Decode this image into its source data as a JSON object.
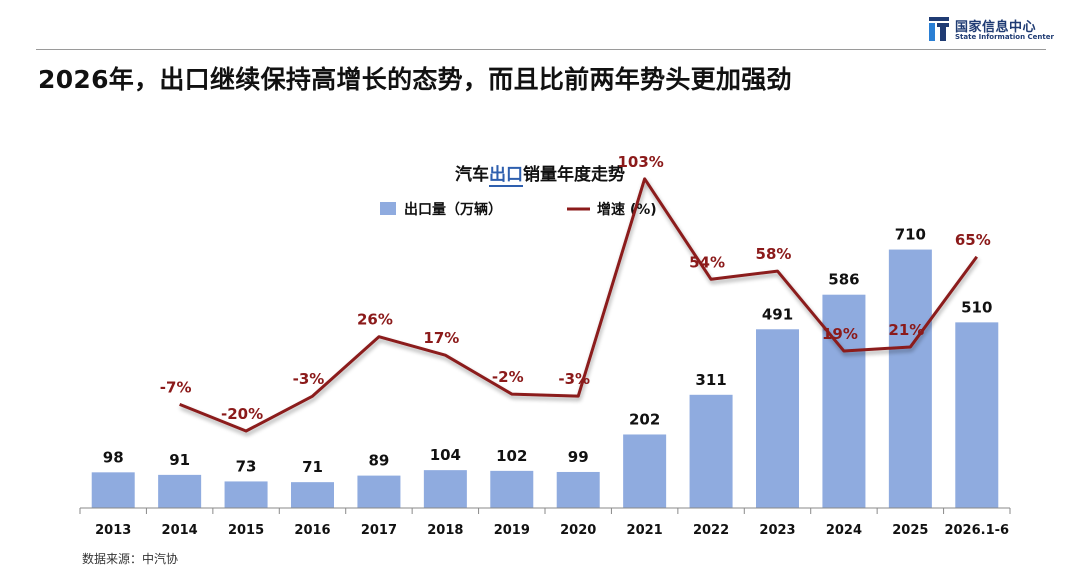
{
  "header": {
    "logo_cn": "国家信息中心",
    "logo_en": "State Information Center",
    "headline": "2026年，出口继续保持高增长的态势，而且比前两年势头更加强劲",
    "source": "数据来源：中汽协"
  },
  "colors": {
    "bar": "#8fabdf",
    "line": "#8b1a1a",
    "growth_label": "#8b1a1a",
    "logo": "#1f3b73"
  },
  "chart_data": {
    "type": "bar",
    "title_parts": [
      "汽车",
      "出口",
      "销量年度走势"
    ],
    "legend_placement": "top-center",
    "categories": [
      "2013",
      "2014",
      "2015",
      "2016",
      "2017",
      "2018",
      "2019",
      "2020",
      "2021",
      "2022",
      "2023",
      "2024",
      "2025",
      "2026.1-6"
    ],
    "series": [
      {
        "name": "出口量（万辆）",
        "type": "bar",
        "values": [
          98,
          91,
          73,
          71,
          89,
          104,
          102,
          99,
          202,
          311,
          491,
          586,
          710,
          510
        ]
      },
      {
        "name": "增速 (%)",
        "type": "line",
        "values": [
          null,
          -7,
          -20,
          -3,
          26,
          17,
          -2,
          -3,
          103,
          54,
          58,
          19,
          21,
          65
        ],
        "labels": [
          null,
          "-7%",
          "-20%",
          "-3%",
          "26%",
          "17%",
          "-2%",
          "-3%",
          "103%",
          "54%",
          "58%",
          "19%",
          "21%",
          "65%"
        ]
      }
    ],
    "y_left_range": [
      0,
      1000
    ],
    "y_right_range": [
      -80,
      120
    ],
    "grid": false
  }
}
